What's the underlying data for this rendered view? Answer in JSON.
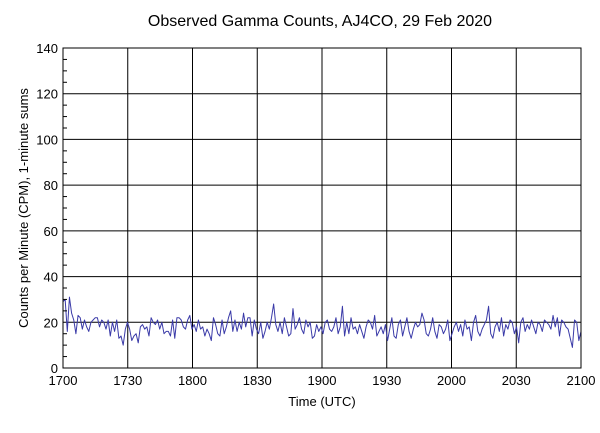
{
  "chart_data": {
    "type": "line",
    "title": "Observed Gamma Counts, AJ4CO, 29 Feb 2020",
    "xlabel": "Time (UTC)",
    "ylabel": "Counts per Minute (CPM), 1-minute sums",
    "xlim": [
      0,
      240
    ],
    "ylim": [
      0,
      140
    ],
    "x_tick_labels": [
      "1700",
      "1730",
      "1800",
      "1830",
      "1900",
      "1930",
      "2000",
      "2030",
      "2100"
    ],
    "y_tick_labels": [
      "0",
      "20",
      "40",
      "60",
      "80",
      "100",
      "120",
      "140"
    ],
    "y_ticks": [
      0,
      20,
      40,
      60,
      80,
      100,
      120,
      140
    ],
    "grid": true,
    "x_minutes_start": "1700",
    "series": [
      {
        "color": "#3a3aa8",
        "values": [
          29,
          30,
          16,
          31,
          24,
          21,
          15,
          23,
          22,
          17,
          21,
          18,
          16,
          20,
          21,
          22,
          22,
          18,
          21,
          20,
          17,
          21,
          14,
          20,
          16,
          21,
          13,
          14,
          10,
          17,
          20,
          17,
          12,
          14,
          15,
          11,
          18,
          19,
          17,
          18,
          14,
          22,
          20,
          19,
          21,
          17,
          20,
          15,
          16,
          16,
          14,
          21,
          13,
          22,
          22,
          21,
          18,
          17,
          21,
          23,
          17,
          19,
          16,
          21,
          17,
          18,
          14,
          17,
          15,
          12,
          22,
          19,
          15,
          14,
          21,
          15,
          18,
          22,
          25,
          16,
          21,
          16,
          20,
          17,
          24,
          18,
          22,
          22,
          14,
          21,
          17,
          15,
          20,
          13,
          16,
          20,
          17,
          22,
          28,
          19,
          16,
          20,
          15,
          22,
          18,
          14,
          15,
          26,
          17,
          19,
          22,
          17,
          15,
          21,
          18,
          20,
          13,
          14,
          19,
          16,
          18,
          15,
          20,
          21,
          17,
          16,
          18,
          22,
          15,
          18,
          27,
          14,
          20,
          15,
          22,
          17,
          18,
          15,
          19,
          16,
          13,
          18,
          21,
          20,
          17,
          23,
          14,
          16,
          18,
          15,
          19,
          12,
          17,
          22,
          14,
          13,
          19,
          21,
          14,
          18,
          22,
          16,
          13,
          17,
          20,
          18,
          19,
          24,
          21,
          15,
          14,
          17,
          22,
          16,
          13,
          19,
          18,
          15,
          17,
          21,
          12,
          15,
          18,
          20,
          16,
          19,
          14,
          21,
          17,
          18,
          12,
          20,
          23,
          16,
          14,
          17,
          19,
          21,
          27,
          15,
          13,
          18,
          20,
          16,
          22,
          14,
          19,
          17,
          21,
          20,
          15,
          18,
          11,
          20,
          22,
          16,
          19,
          17,
          21,
          18,
          15,
          20,
          19,
          16,
          21,
          20,
          19,
          17,
          23,
          18,
          22,
          14,
          21,
          20,
          18,
          17,
          13,
          9,
          21,
          20,
          12,
          16
        ]
      }
    ]
  }
}
